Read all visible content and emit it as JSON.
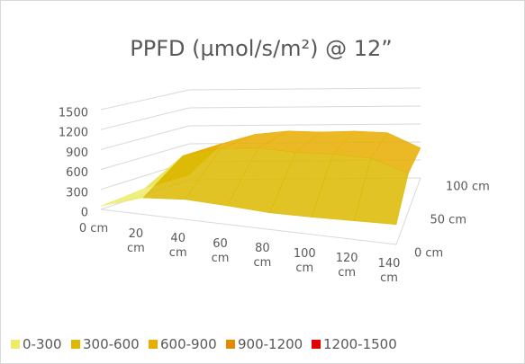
{
  "chart_data": {
    "type": "surface",
    "title": "PPFD (µmol/s/m²) @ 12”",
    "categories": [
      "0 cm",
      "20 cm",
      "40 cm",
      "60 cm",
      "80 cm",
      "100 cm",
      "120 cm",
      "140 cm"
    ],
    "series": [
      {
        "name": "0 cm",
        "values": [
          50,
          250,
          300,
          280,
          250,
          260,
          280,
          300
        ]
      },
      {
        "name": "50 cm",
        "values": [
          100,
          650,
          800,
          850,
          820,
          830,
          800,
          600
        ]
      },
      {
        "name": "100 cm",
        "values": [
          80,
          600,
          750,
          800,
          780,
          790,
          760,
          500
        ]
      }
    ],
    "zlim": [
      0,
      1500
    ],
    "zticks": [
      0,
      300,
      600,
      900,
      1200,
      1500
    ],
    "legend": [
      {
        "label": "0-300",
        "color": "#ecec6a"
      },
      {
        "label": "300-600",
        "color": "#dcb800"
      },
      {
        "label": "600-900",
        "color": "#e9ad00"
      },
      {
        "label": "900-1200",
        "color": "#e38a00"
      },
      {
        "label": "1200-1500",
        "color": "#e00000"
      }
    ]
  }
}
